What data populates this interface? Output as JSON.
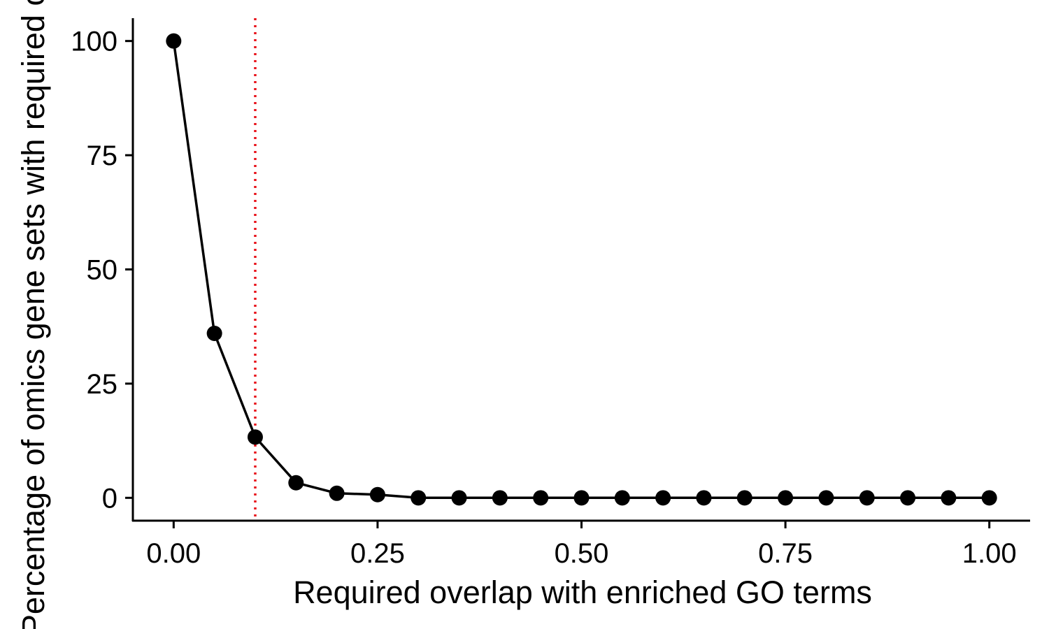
{
  "chart_data": {
    "type": "line",
    "xlabel": "Required overlap with enriched GO terms",
    "ylabel": "Percentage of omics gene sets with required overlap",
    "xlim": [
      -0.05,
      1.05
    ],
    "ylim": [
      -5,
      105
    ],
    "x_ticks": [
      "0.00",
      "0.25",
      "0.50",
      "0.75",
      "1.00"
    ],
    "y_ticks": [
      "0",
      "25",
      "50",
      "75",
      "100"
    ],
    "grid": false,
    "legend": "none",
    "series": [
      {
        "x": [
          0.0,
          0.05,
          0.1,
          0.15,
          0.2,
          0.25,
          0.3,
          0.35,
          0.4,
          0.45,
          0.5,
          0.55,
          0.6,
          0.65,
          0.7,
          0.75,
          0.8,
          0.85,
          0.9,
          0.95,
          1.0
        ],
        "values": [
          100,
          36,
          13.3,
          3.3,
          1.0,
          0.7,
          0,
          0,
          0,
          0,
          0,
          0,
          0,
          0,
          0,
          0,
          0,
          0,
          0,
          0,
          0
        ]
      }
    ],
    "reference_line": {
      "orientation": "vertical",
      "x": 0.1,
      "style": "dotted",
      "color": "#e8141c"
    },
    "colors": {
      "line": "#000000",
      "points": "#000000"
    }
  }
}
